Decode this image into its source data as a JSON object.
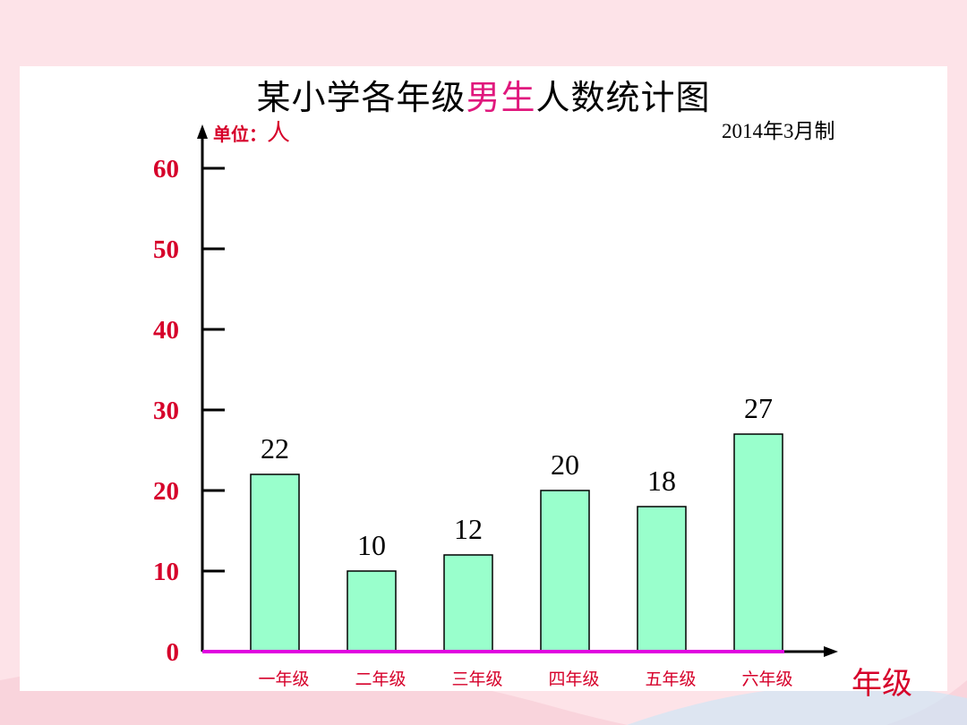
{
  "slide": {
    "title_parts": [
      "某小学各年级",
      "男生",
      "人数统计图"
    ],
    "unit_prefix": "单位：",
    "unit_value": "人",
    "date_note": "2014年3月制",
    "x_axis_title": "年级"
  },
  "colors": {
    "bar_fill": "#99ffcc",
    "axis": "#000000",
    "baseline": "#e000e0",
    "label_red": "#d6002a",
    "title_highlight": "#e0187d"
  },
  "chart_data": {
    "type": "bar",
    "title": "某小学各年级男生人数统计图",
    "categories": [
      "一年级",
      "二年级",
      "三年级",
      "四年级",
      "五年级",
      "六年级"
    ],
    "values": [
      22,
      10,
      12,
      20,
      18,
      27
    ],
    "data_labels": [
      "22",
      "10",
      "12",
      "20",
      "18",
      "27"
    ],
    "yticks": [
      0,
      10,
      20,
      30,
      40,
      50,
      60
    ],
    "ylim": [
      0,
      60
    ],
    "ylabel": "单位：人",
    "xlabel": "年级",
    "grid": false,
    "legend": "none"
  }
}
